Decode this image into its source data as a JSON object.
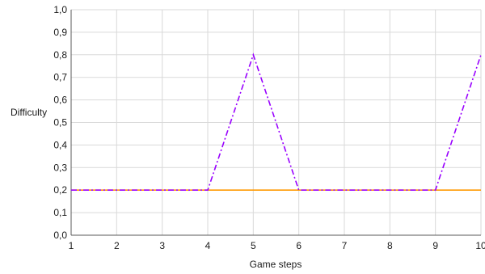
{
  "chart_data": {
    "type": "line",
    "xlabel": "Game steps",
    "ylabel": "Difficulty",
    "x": [
      1,
      2,
      3,
      4,
      5,
      6,
      7,
      8,
      9,
      10
    ],
    "x_tick_labels": [
      "1",
      "2",
      "3",
      "4",
      "5",
      "6",
      "7",
      "8",
      "9",
      "10"
    ],
    "y_tick_labels": [
      "0,0",
      "0,1",
      "0,2",
      "0,3",
      "0,4",
      "0,5",
      "0,6",
      "0,7",
      "0,8",
      "0,9",
      "1,0"
    ],
    "xlim": [
      1,
      10
    ],
    "ylim": [
      0,
      1
    ],
    "grid": true,
    "legend": "none",
    "series": [
      {
        "values": [
          0.2,
          0.2,
          0.2,
          0.2,
          0.2,
          0.2,
          0.2,
          0.2,
          0.2,
          0.2
        ],
        "color": "#ff9900",
        "style": "solid"
      },
      {
        "values": [
          0.2,
          0.2,
          0.2,
          0.2,
          0.8,
          0.2,
          0.2,
          0.2,
          0.2,
          0.8
        ],
        "color": "#9900ff",
        "style": "dash-dot"
      }
    ]
  }
}
